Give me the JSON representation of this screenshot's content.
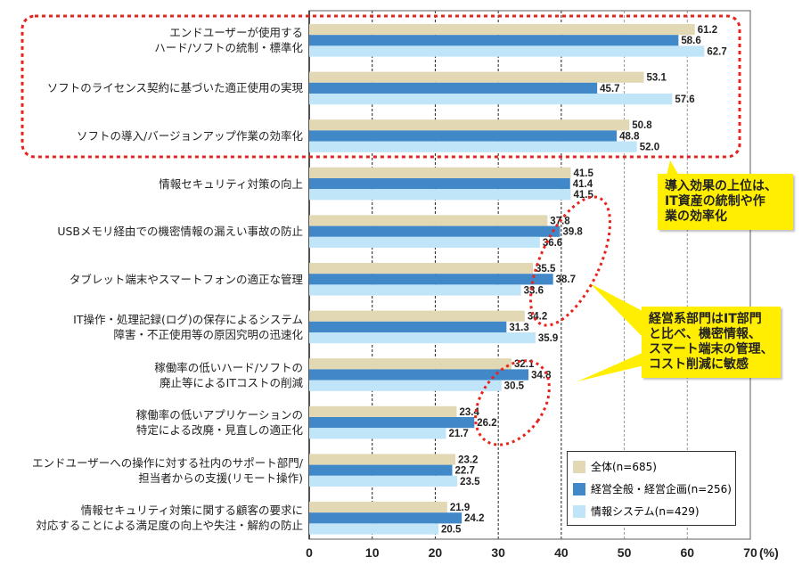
{
  "chart_data": {
    "type": "bar",
    "orientation": "horizontal",
    "categories": [
      [
        "エンドユーザーが使用する",
        "ハード/ソフトの統制・標準化"
      ],
      [
        "ソフトのライセンス契約に基づいた適正使用の実現"
      ],
      [
        "ソフトの導入/バージョンアップ作業の効率化"
      ],
      [
        "情報セキュリティ対策の向上"
      ],
      [
        "USBメモリ経由での機密情報の漏えい事故の防止"
      ],
      [
        "タブレット端末やスマートフォンの適正な管理"
      ],
      [
        "IT操作・処理記録(ログ)の保存によるシステム",
        "障害・不正使用等の原因究明の迅速化"
      ],
      [
        "稼働率の低いハード/ソフトの",
        "廃止等によるITコストの削減"
      ],
      [
        "稼働率の低いアプリケーションの",
        "特定による改廃・見直しの適正化"
      ],
      [
        "エンドユーザーへの操作に対する社内のサポート部門/",
        "担当者からの支援(リモート操作)"
      ],
      [
        "情報セキュリティ対策に関する顧客の要求に",
        "対応することによる満足度の向上や失注・解約の防止"
      ]
    ],
    "series": [
      {
        "name": "全体(n=685)",
        "color": "#e3d8b4",
        "values": [
          61.2,
          53.1,
          50.8,
          41.5,
          37.8,
          35.5,
          34.2,
          32.1,
          23.4,
          23.2,
          21.9
        ]
      },
      {
        "name": "経営全般・経営企画(n=256)",
        "color": "#4088c8",
        "values": [
          58.6,
          45.7,
          48.8,
          41.4,
          39.8,
          38.7,
          31.3,
          34.8,
          26.2,
          22.7,
          24.2
        ]
      },
      {
        "name": "情報システム(n=429)",
        "color": "#c0e4f8",
        "values": [
          62.7,
          57.6,
          52.0,
          41.5,
          36.6,
          33.6,
          35.9,
          30.5,
          21.7,
          23.5,
          20.5
        ]
      }
    ],
    "xlim": [
      0,
      70
    ],
    "xticks": [
      "0",
      "10",
      "20",
      "30",
      "40",
      "50",
      "60",
      "70"
    ],
    "xunit": "(%)",
    "legend": "bottom-right",
    "annotations": [
      [
        "導入効果の上位は、",
        "IT資産の統制や作",
        "業の効率化"
      ],
      [
        "経営系部門はIT部門",
        "と比べ、機密情報、",
        "スマート端末の管理、",
        "コスト削減に敏感"
      ]
    ]
  }
}
